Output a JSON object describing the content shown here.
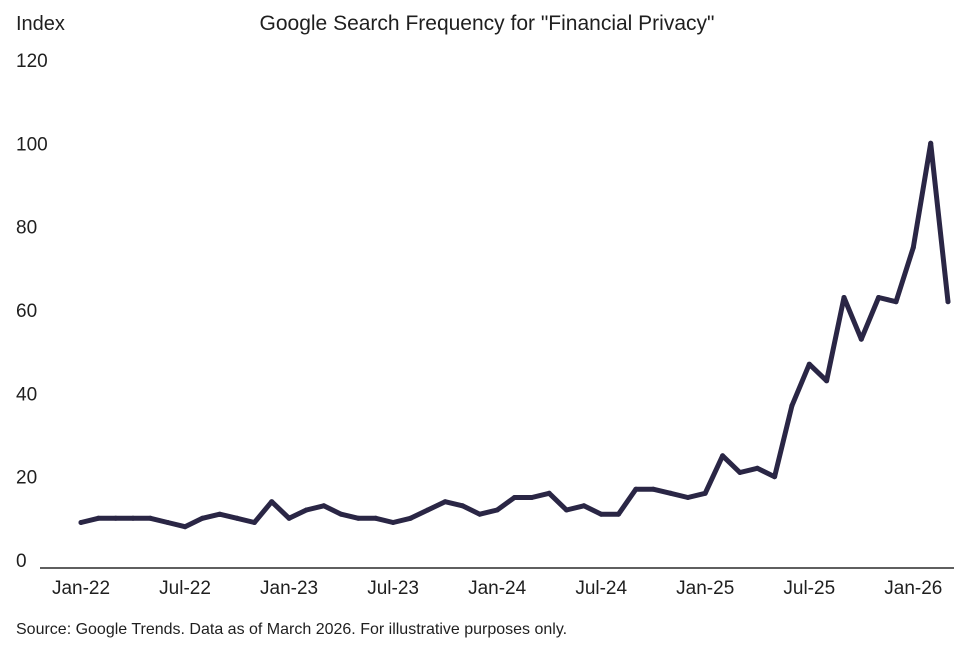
{
  "chart_data": {
    "type": "line",
    "title": "Google Search Frequency for \"Financial Privacy\"",
    "ylabel": "Index",
    "xlabel": "",
    "ylim": [
      0,
      120
    ],
    "yticks": [
      "0",
      "20",
      "40",
      "60",
      "80",
      "100",
      "120"
    ],
    "xticks": [
      "Jan-22",
      "Jul-22",
      "Jan-23",
      "Jul-23",
      "Jan-24",
      "Jul-24",
      "Jan-25",
      "Jul-25",
      "Jan-26"
    ],
    "grid": false,
    "line_color": "#2a2645",
    "x": [
      "2022-01",
      "2022-02",
      "2022-03",
      "2022-04",
      "2022-05",
      "2022-06",
      "2022-07",
      "2022-08",
      "2022-09",
      "2022-10",
      "2022-11",
      "2022-12",
      "2023-01",
      "2023-02",
      "2023-03",
      "2023-04",
      "2023-05",
      "2023-06",
      "2023-07",
      "2023-08",
      "2023-09",
      "2023-10",
      "2023-11",
      "2023-12",
      "2024-01",
      "2024-02",
      "2024-03",
      "2024-04",
      "2024-05",
      "2024-06",
      "2024-07",
      "2024-08",
      "2024-09",
      "2024-10",
      "2024-11",
      "2024-12",
      "2025-01",
      "2025-02",
      "2025-03",
      "2025-04",
      "2025-05",
      "2025-06",
      "2025-07",
      "2025-08",
      "2025-09",
      "2025-10",
      "2025-11",
      "2025-12",
      "2026-01",
      "2026-02",
      "2026-03"
    ],
    "series": [
      {
        "values": [
          9,
          10,
          10,
          10,
          10,
          9,
          8,
          10,
          11,
          10,
          9,
          14,
          10,
          12,
          13,
          11,
          10,
          10,
          9,
          10,
          12,
          14,
          13,
          11,
          12,
          15,
          15,
          16,
          12,
          13,
          11,
          11,
          17,
          17,
          16,
          15,
          16,
          25,
          21,
          22,
          20,
          37,
          47,
          43,
          63,
          53,
          63,
          62,
          75,
          100,
          62
        ]
      }
    ]
  },
  "footer": {
    "source": "Source: Google Trends. Data as of March 2026. For illustrative purposes only."
  }
}
